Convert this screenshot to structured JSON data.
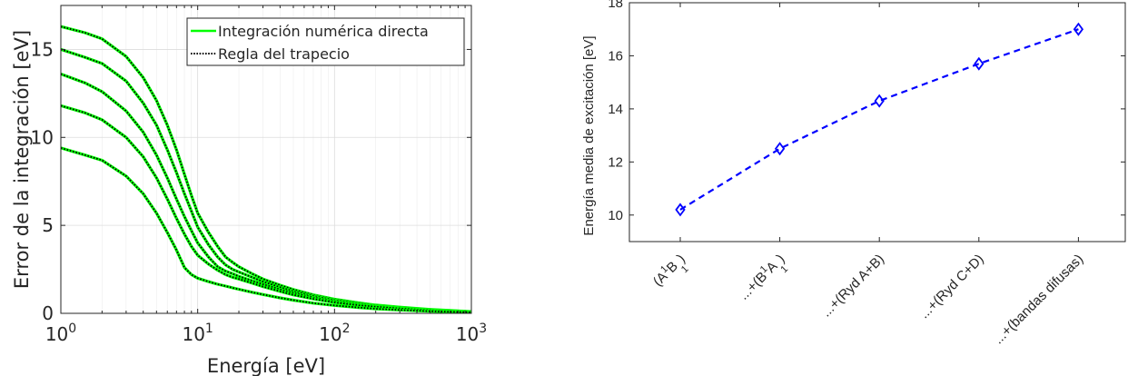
{
  "chart_data": [
    {
      "type": "line",
      "xlabel": "Energía [eV]",
      "ylabel": "Error de la integración [eV]",
      "xscale": "log",
      "xlim": [
        1,
        1000
      ],
      "ylim": [
        0,
        17.5
      ],
      "grid": true,
      "legend_placement": "top-right",
      "xticks": [
        1,
        10,
        100,
        1000
      ],
      "xtick_base": "10",
      "xtick_exponents": [
        "0",
        "1",
        "2",
        "3"
      ],
      "yticks": [
        0,
        5,
        10,
        15
      ],
      "ytick_labels": [
        "0",
        "5",
        "10",
        "15"
      ],
      "legend": [
        {
          "label": "Integración numérica directa",
          "color": "#00ff00",
          "style": "solid"
        },
        {
          "label": "Regla del trapecio",
          "color": "#000000",
          "style": "dotted"
        }
      ],
      "x": [
        1,
        1.5,
        2,
        3,
        4,
        5,
        6,
        7,
        8,
        9,
        10,
        12,
        14,
        16,
        18,
        20,
        25,
        30,
        40,
        50,
        70,
        100,
        150,
        200,
        300,
        500,
        700,
        1000
      ],
      "series": [
        {
          "values": [
            16.3,
            15.95,
            15.6,
            14.6,
            13.4,
            12.1,
            10.7,
            9.3,
            7.9,
            6.7,
            5.7,
            4.6,
            3.8,
            3.2,
            2.9,
            2.65,
            2.25,
            1.95,
            1.6,
            1.35,
            1.05,
            0.8,
            0.6,
            0.47,
            0.35,
            0.22,
            0.16,
            0.1
          ]
        },
        {
          "values": [
            15.0,
            14.55,
            14.2,
            13.2,
            11.95,
            10.7,
            9.3,
            8.0,
            6.8,
            5.8,
            4.9,
            3.9,
            3.2,
            2.75,
            2.5,
            2.35,
            2.05,
            1.8,
            1.48,
            1.25,
            0.98,
            0.75,
            0.55,
            0.44,
            0.32,
            0.2,
            0.15,
            0.09
          ]
        },
        {
          "values": [
            13.6,
            13.1,
            12.6,
            11.5,
            10.3,
            9.0,
            7.7,
            6.5,
            5.5,
            4.7,
            4.0,
            3.2,
            2.65,
            2.4,
            2.25,
            2.1,
            1.85,
            1.65,
            1.36,
            1.15,
            0.9,
            0.68,
            0.5,
            0.4,
            0.3,
            0.18,
            0.13,
            0.08
          ]
        },
        {
          "values": [
            11.8,
            11.4,
            11.0,
            10.0,
            8.9,
            7.7,
            6.5,
            5.4,
            4.5,
            3.8,
            3.3,
            2.8,
            2.45,
            2.2,
            2.05,
            1.95,
            1.72,
            1.52,
            1.25,
            1.05,
            0.82,
            0.62,
            0.46,
            0.37,
            0.27,
            0.17,
            0.12,
            0.08
          ]
        },
        {
          "values": [
            9.4,
            9.0,
            8.7,
            7.8,
            6.8,
            5.7,
            4.6,
            3.6,
            2.6,
            2.2,
            2.0,
            1.8,
            1.65,
            1.55,
            1.45,
            1.37,
            1.2,
            1.07,
            0.88,
            0.75,
            0.58,
            0.45,
            0.33,
            0.26,
            0.19,
            0.12,
            0.09,
            0.06
          ]
        }
      ]
    },
    {
      "type": "line",
      "ylabel": "Energía media de excitación [eV]",
      "ylim": [
        9,
        18
      ],
      "yticks": [
        10,
        12,
        14,
        16,
        18
      ],
      "ytick_labels": [
        "10",
        "12",
        "14",
        "16",
        "18"
      ],
      "categories": [
        "(A¹B₁)",
        "...+(B¹A₁)",
        "...+(Ryd A+B)",
        "...+(Ryd C+D)",
        "...+(bandas difusas)"
      ],
      "cat_parts": [
        [
          {
            "t": "(A"
          },
          {
            "t": "1",
            "sup": true
          },
          {
            "t": "B"
          },
          {
            "t": "1",
            "sub": true
          },
          {
            "t": ")"
          }
        ],
        [
          {
            "t": "...+(B"
          },
          {
            "t": "1",
            "sup": true
          },
          {
            "t": "A"
          },
          {
            "t": "1",
            "sub": true
          },
          {
            "t": ")"
          }
        ],
        [
          {
            "t": "...+(Ryd A+B)"
          }
        ],
        [
          {
            "t": "...+(Ryd C+D)"
          }
        ],
        [
          {
            "t": "...+(bandas difusas)"
          }
        ]
      ],
      "values": [
        10.2,
        12.5,
        14.3,
        15.7,
        17.0
      ],
      "color": "#0000ff",
      "line_style": "dashed",
      "marker": "diamond",
      "grid": false
    }
  ]
}
